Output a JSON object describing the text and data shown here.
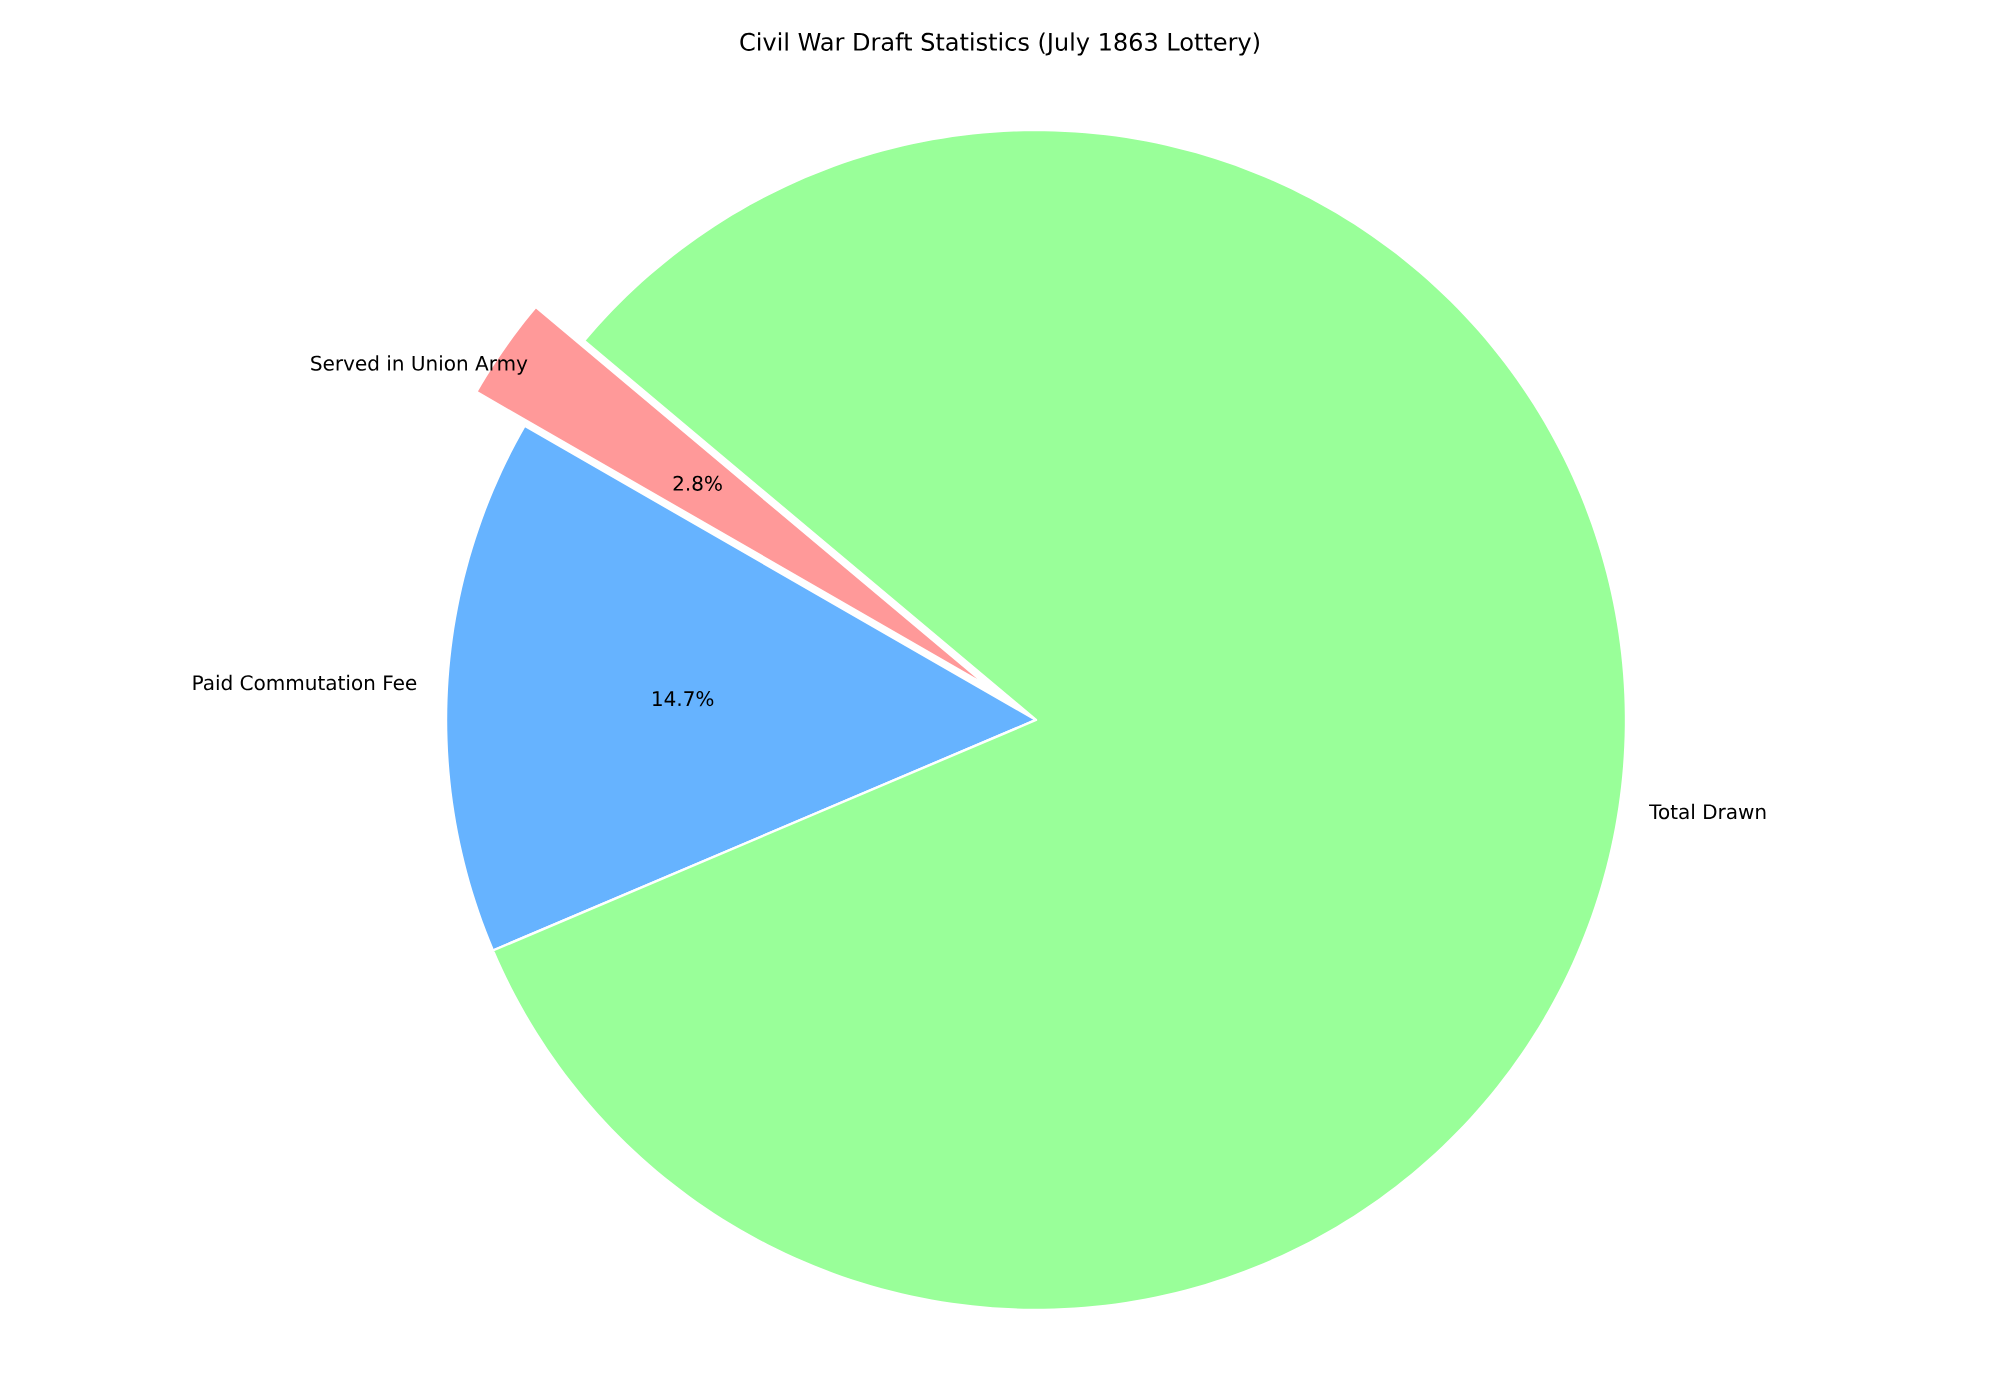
{
  "chart_data": {
    "type": "pie",
    "title": "Civil War Draft Statistics (July 1863 Lottery)",
    "categories": [
      "Served in Union Army",
      "Paid Commutation Fee",
      "Total Drawn"
    ],
    "values": [
      2.8,
      14.7,
      82.5
    ],
    "colors": [
      "#ff9999",
      "#66b3ff",
      "#99ff99"
    ],
    "value_labels": [
      "2.8%",
      "14.7%",
      null
    ]
  }
}
